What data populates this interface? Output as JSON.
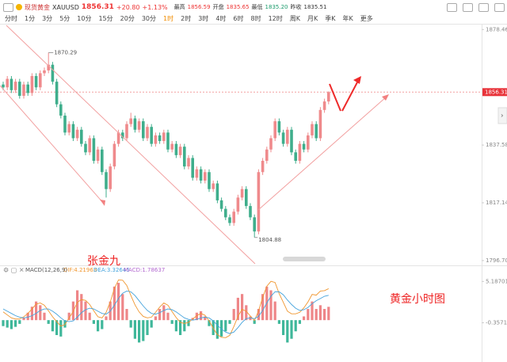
{
  "header": {
    "symbol": "现货黄金",
    "code": "XAUUSD",
    "price": "1856.31",
    "change": "+20.80",
    "change_pct": "+1.13%",
    "stats": [
      {
        "label": "最高",
        "value": "1856.59"
      },
      {
        "label": "开盘",
        "value": "1835.65"
      },
      {
        "label": "最低",
        "value": "1835.20"
      },
      {
        "label": "昨收",
        "value": "1835.51"
      }
    ]
  },
  "periods": [
    "分时",
    "1分",
    "3分",
    "5分",
    "10分",
    "15分",
    "20分",
    "30分",
    "1时",
    "2时",
    "3时",
    "4时",
    "6时",
    "8时",
    "12时",
    "周K",
    "月K",
    "季K",
    "年K",
    "更多"
  ],
  "active_period": 8,
  "annotations": {
    "author": "张金九",
    "caption": "黄金小时图"
  },
  "chart_data": [
    {
      "type": "candlestick",
      "up_color": "#ef8a8c",
      "down_color": "#3fae8c",
      "ylim": [
        1795,
        1880.5
      ],
      "yticks": [
        1878.46,
        1837.58,
        1817.14,
        {
          "value": 1796.7,
          "label": "1796.70"
        }
      ],
      "last_price": 1856.31,
      "high_label": 1870.29,
      "low_label": 1804.88,
      "open": [
        1859,
        1858,
        1861,
        1857,
        1860,
        1855,
        1859,
        1856,
        1862,
        1858,
        1863,
        1864,
        1866,
        1860,
        1852,
        1848,
        1842,
        1845,
        1840,
        1843,
        1838,
        1835,
        1840,
        1832,
        1836,
        1828,
        1822,
        1830,
        1838,
        1842,
        1840,
        1845,
        1847,
        1843,
        1846,
        1840,
        1844,
        1838,
        1841,
        1839,
        1842,
        1836,
        1838,
        1834,
        1837,
        1830,
        1833,
        1826,
        1829,
        1825,
        1828,
        1822,
        1824,
        1818,
        1815,
        1812,
        1810,
        1814,
        1819,
        1822,
        1816,
        1812,
        1807,
        1828,
        1832,
        1836,
        1840,
        1846,
        1842,
        1838,
        1843,
        1835,
        1832,
        1838,
        1836,
        1841,
        1845,
        1840,
        1850,
        1853
      ],
      "high": [
        1860,
        1862,
        1862,
        1861,
        1861,
        1860,
        1860,
        1863,
        1863,
        1864,
        1865,
        1870.29,
        1867,
        1861,
        1853,
        1849,
        1846,
        1846,
        1844,
        1844,
        1839,
        1841,
        1841,
        1837,
        1837,
        1829,
        1831,
        1839,
        1843,
        1843,
        1846,
        1849,
        1848,
        1847,
        1847,
        1845,
        1845,
        1842,
        1842,
        1843,
        1843,
        1839,
        1839,
        1838,
        1838,
        1834,
        1834,
        1830,
        1830,
        1829,
        1829,
        1825,
        1825,
        1819,
        1816,
        1813,
        1815,
        1820,
        1823,
        1823,
        1817,
        1813,
        1829,
        1833,
        1837,
        1841,
        1847,
        1847,
        1843,
        1844,
        1844,
        1836,
        1839,
        1839,
        1842,
        1846,
        1846,
        1851,
        1854,
        1856.59
      ],
      "low": [
        1857,
        1857,
        1856,
        1856,
        1854,
        1854,
        1855,
        1855,
        1857,
        1857,
        1862,
        1863,
        1859,
        1851,
        1847,
        1841,
        1841,
        1839,
        1839,
        1837,
        1834,
        1834,
        1831,
        1831,
        1827,
        1819,
        1821,
        1829,
        1837,
        1839,
        1839,
        1844,
        1842,
        1842,
        1839,
        1839,
        1837,
        1837,
        1838,
        1838,
        1835,
        1835,
        1833,
        1833,
        1829,
        1829,
        1825,
        1825,
        1824,
        1824,
        1821,
        1821,
        1817,
        1814,
        1811,
        1809,
        1809,
        1813,
        1818,
        1815,
        1811,
        1804.88,
        1806,
        1827,
        1831,
        1835,
        1839,
        1841,
        1837,
        1837,
        1834,
        1831,
        1831,
        1835,
        1835,
        1840,
        1839,
        1839,
        1849,
        1852
      ],
      "close": [
        1858,
        1861,
        1857,
        1860,
        1855,
        1859,
        1856,
        1862,
        1858,
        1863,
        1864,
        1866,
        1860,
        1852,
        1848,
        1842,
        1845,
        1840,
        1843,
        1838,
        1835,
        1840,
        1832,
        1836,
        1828,
        1822,
        1830,
        1838,
        1842,
        1840,
        1845,
        1847,
        1843,
        1846,
        1840,
        1844,
        1838,
        1841,
        1839,
        1842,
        1836,
        1838,
        1834,
        1837,
        1830,
        1833,
        1826,
        1829,
        1825,
        1828,
        1822,
        1824,
        1818,
        1815,
        1812,
        1810,
        1814,
        1819,
        1822,
        1816,
        1812,
        1807,
        1828,
        1832,
        1836,
        1840,
        1846,
        1842,
        1838,
        1843,
        1835,
        1832,
        1838,
        1836,
        1841,
        1845,
        1840,
        1850,
        1853,
        1856.31
      ]
    },
    {
      "type": "macd",
      "title": "MACD(12,26,9)",
      "ylim": [
        -5.4,
        6.6
      ],
      "yticks": [
        5.18701,
        -0.35715
      ],
      "series": [
        {
          "label": "DIF:4.21963",
          "color": "#f0962e",
          "values": [
            1.1,
            0.7,
            0.3,
            0.15,
            0.15,
            0.45,
            0.9,
            1.5,
            2.15,
            2.3,
            2.0,
            1.25,
            0.45,
            -0.2,
            -0.8,
            -0.6,
            0.3,
            1.15,
            2.4,
            2.75,
            2.65,
            2.1,
            1.25,
            0.45,
            0.3,
            1.05,
            2.45,
            4.25,
            5.4,
            5.35,
            4.65,
            3.3,
            2.05,
            1.1,
            0.5,
            0.3,
            0.4,
            1.05,
            1.75,
            2.3,
            2.0,
            1.15,
            0.35,
            -0.3,
            -0.45,
            -0.3,
            0.15,
            0.6,
            0.9,
            0.65,
            -0.1,
            -1.1,
            -1.95,
            -2.3,
            -2.35,
            -2.05,
            -0.85,
            0.5,
            1.45,
            1.2,
            0.55,
            -0.05,
            1.25,
            3.05,
            4.55,
            5.2,
            5.05,
            3.55,
            2.4,
            1.2,
            0.85,
            0.85,
            1.05,
            1.65,
            2.45,
            3.45,
            3.35,
            3.9,
            3.95,
            4.21963
          ]
        },
        {
          "label": "DEA:3.32645",
          "color": "#45a3dc",
          "values": [
            1.5,
            1.2,
            0.9,
            0.6,
            0.4,
            0.3,
            0.4,
            0.6,
            0.9,
            1.3,
            1.5,
            1.5,
            1.2,
            0.8,
            0.3,
            -0.1,
            -0.2,
            -0.1,
            0.4,
            1.0,
            1.4,
            1.6,
            1.5,
            1.2,
            0.9,
            0.8,
            1.2,
            2.0,
            2.9,
            3.6,
            3.9,
            3.8,
            3.3,
            2.6,
            1.9,
            1.3,
            0.9,
            0.8,
            1.0,
            1.3,
            1.5,
            1.4,
            1.1,
            0.7,
            0.3,
            0.1,
            0.0,
            0.1,
            0.3,
            0.4,
            0.3,
            -0.1,
            -0.7,
            -1.2,
            -1.6,
            -1.8,
            -1.6,
            -1.0,
            -0.3,
            0.2,
            0.3,
            0.2,
            0.5,
            1.3,
            2.3,
            3.2,
            3.8,
            3.8,
            3.4,
            2.7,
            2.1,
            1.6,
            1.3,
            1.4,
            1.7,
            2.2,
            2.6,
            2.9,
            3.2,
            3.32645
          ]
        }
      ],
      "histogram": {
        "label": "MACD:1.78637",
        "label_color": "#b36ad0",
        "up_color": "#ee8688",
        "down_color": "#3fb79a",
        "values": [
          -0.8,
          -1,
          -1.2,
          -0.9,
          -0.5,
          0.3,
          1,
          1.8,
          2.5,
          2,
          1,
          -0.5,
          -1.5,
          -2,
          -2.2,
          -1,
          1,
          2.5,
          4,
          3.5,
          2.5,
          1,
          -0.5,
          -1.5,
          -1.2,
          0.5,
          2.5,
          4.5,
          5,
          3.5,
          1.5,
          -1,
          -2.5,
          -3,
          -2.8,
          -2,
          -1,
          0.5,
          1.5,
          2,
          1,
          -0.5,
          -1.5,
          -2,
          -1.5,
          -0.8,
          0.3,
          1,
          1.2,
          0.5,
          -0.8,
          -2,
          -2.5,
          -2.2,
          -1.5,
          -0.5,
          1.5,
          3,
          3.5,
          2,
          0.5,
          -0.5,
          1.5,
          3.5,
          4.5,
          4,
          2.5,
          -0.5,
          -2,
          -3,
          -2.5,
          -1.5,
          -0.5,
          0.5,
          1.5,
          2.5,
          1.5,
          2,
          1.5,
          1.78637
        ]
      }
    }
  ]
}
